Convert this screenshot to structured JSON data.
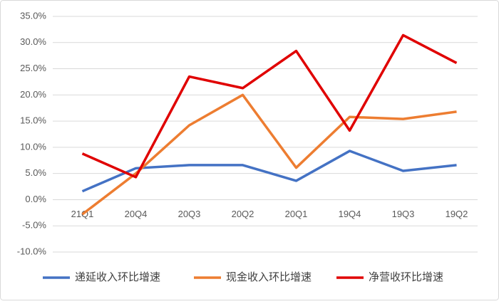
{
  "chart_data": {
    "type": "line",
    "categories": [
      "21Q1",
      "20Q4",
      "20Q3",
      "20Q2",
      "20Q1",
      "19Q4",
      "19Q3",
      "19Q2"
    ],
    "series": [
      {
        "name": "递延收入环比增速",
        "color": "#4472c4",
        "values": [
          1.6,
          6.0,
          6.6,
          6.6,
          3.6,
          9.3,
          5.5,
          6.6
        ]
      },
      {
        "name": "现金收入环比增速",
        "color": "#ed7d31",
        "values": [
          -2.8,
          5.0,
          14.2,
          20.0,
          6.1,
          15.8,
          15.4,
          16.8
        ]
      },
      {
        "name": "净营收环比增速",
        "color": "#e00000",
        "values": [
          8.8,
          4.3,
          23.5,
          21.3,
          28.4,
          13.2,
          31.4,
          26.1
        ]
      }
    ],
    "ylim": [
      -10,
      35
    ],
    "yticks": [
      {
        "value": -10,
        "label": "-10.0%"
      },
      {
        "value": -5,
        "label": "-5.0%"
      },
      {
        "value": 0,
        "label": "0.0%"
      },
      {
        "value": 5,
        "label": "5.0%"
      },
      {
        "value": 10,
        "label": "10.0%"
      },
      {
        "value": 15,
        "label": "15.0%"
      },
      {
        "value": 20,
        "label": "20.0%"
      },
      {
        "value": 25,
        "label": "25.0%"
      },
      {
        "value": 30,
        "label": "30.0%"
      },
      {
        "value": 35,
        "label": "35.0%"
      }
    ],
    "grid": true,
    "legend": "bottom"
  }
}
